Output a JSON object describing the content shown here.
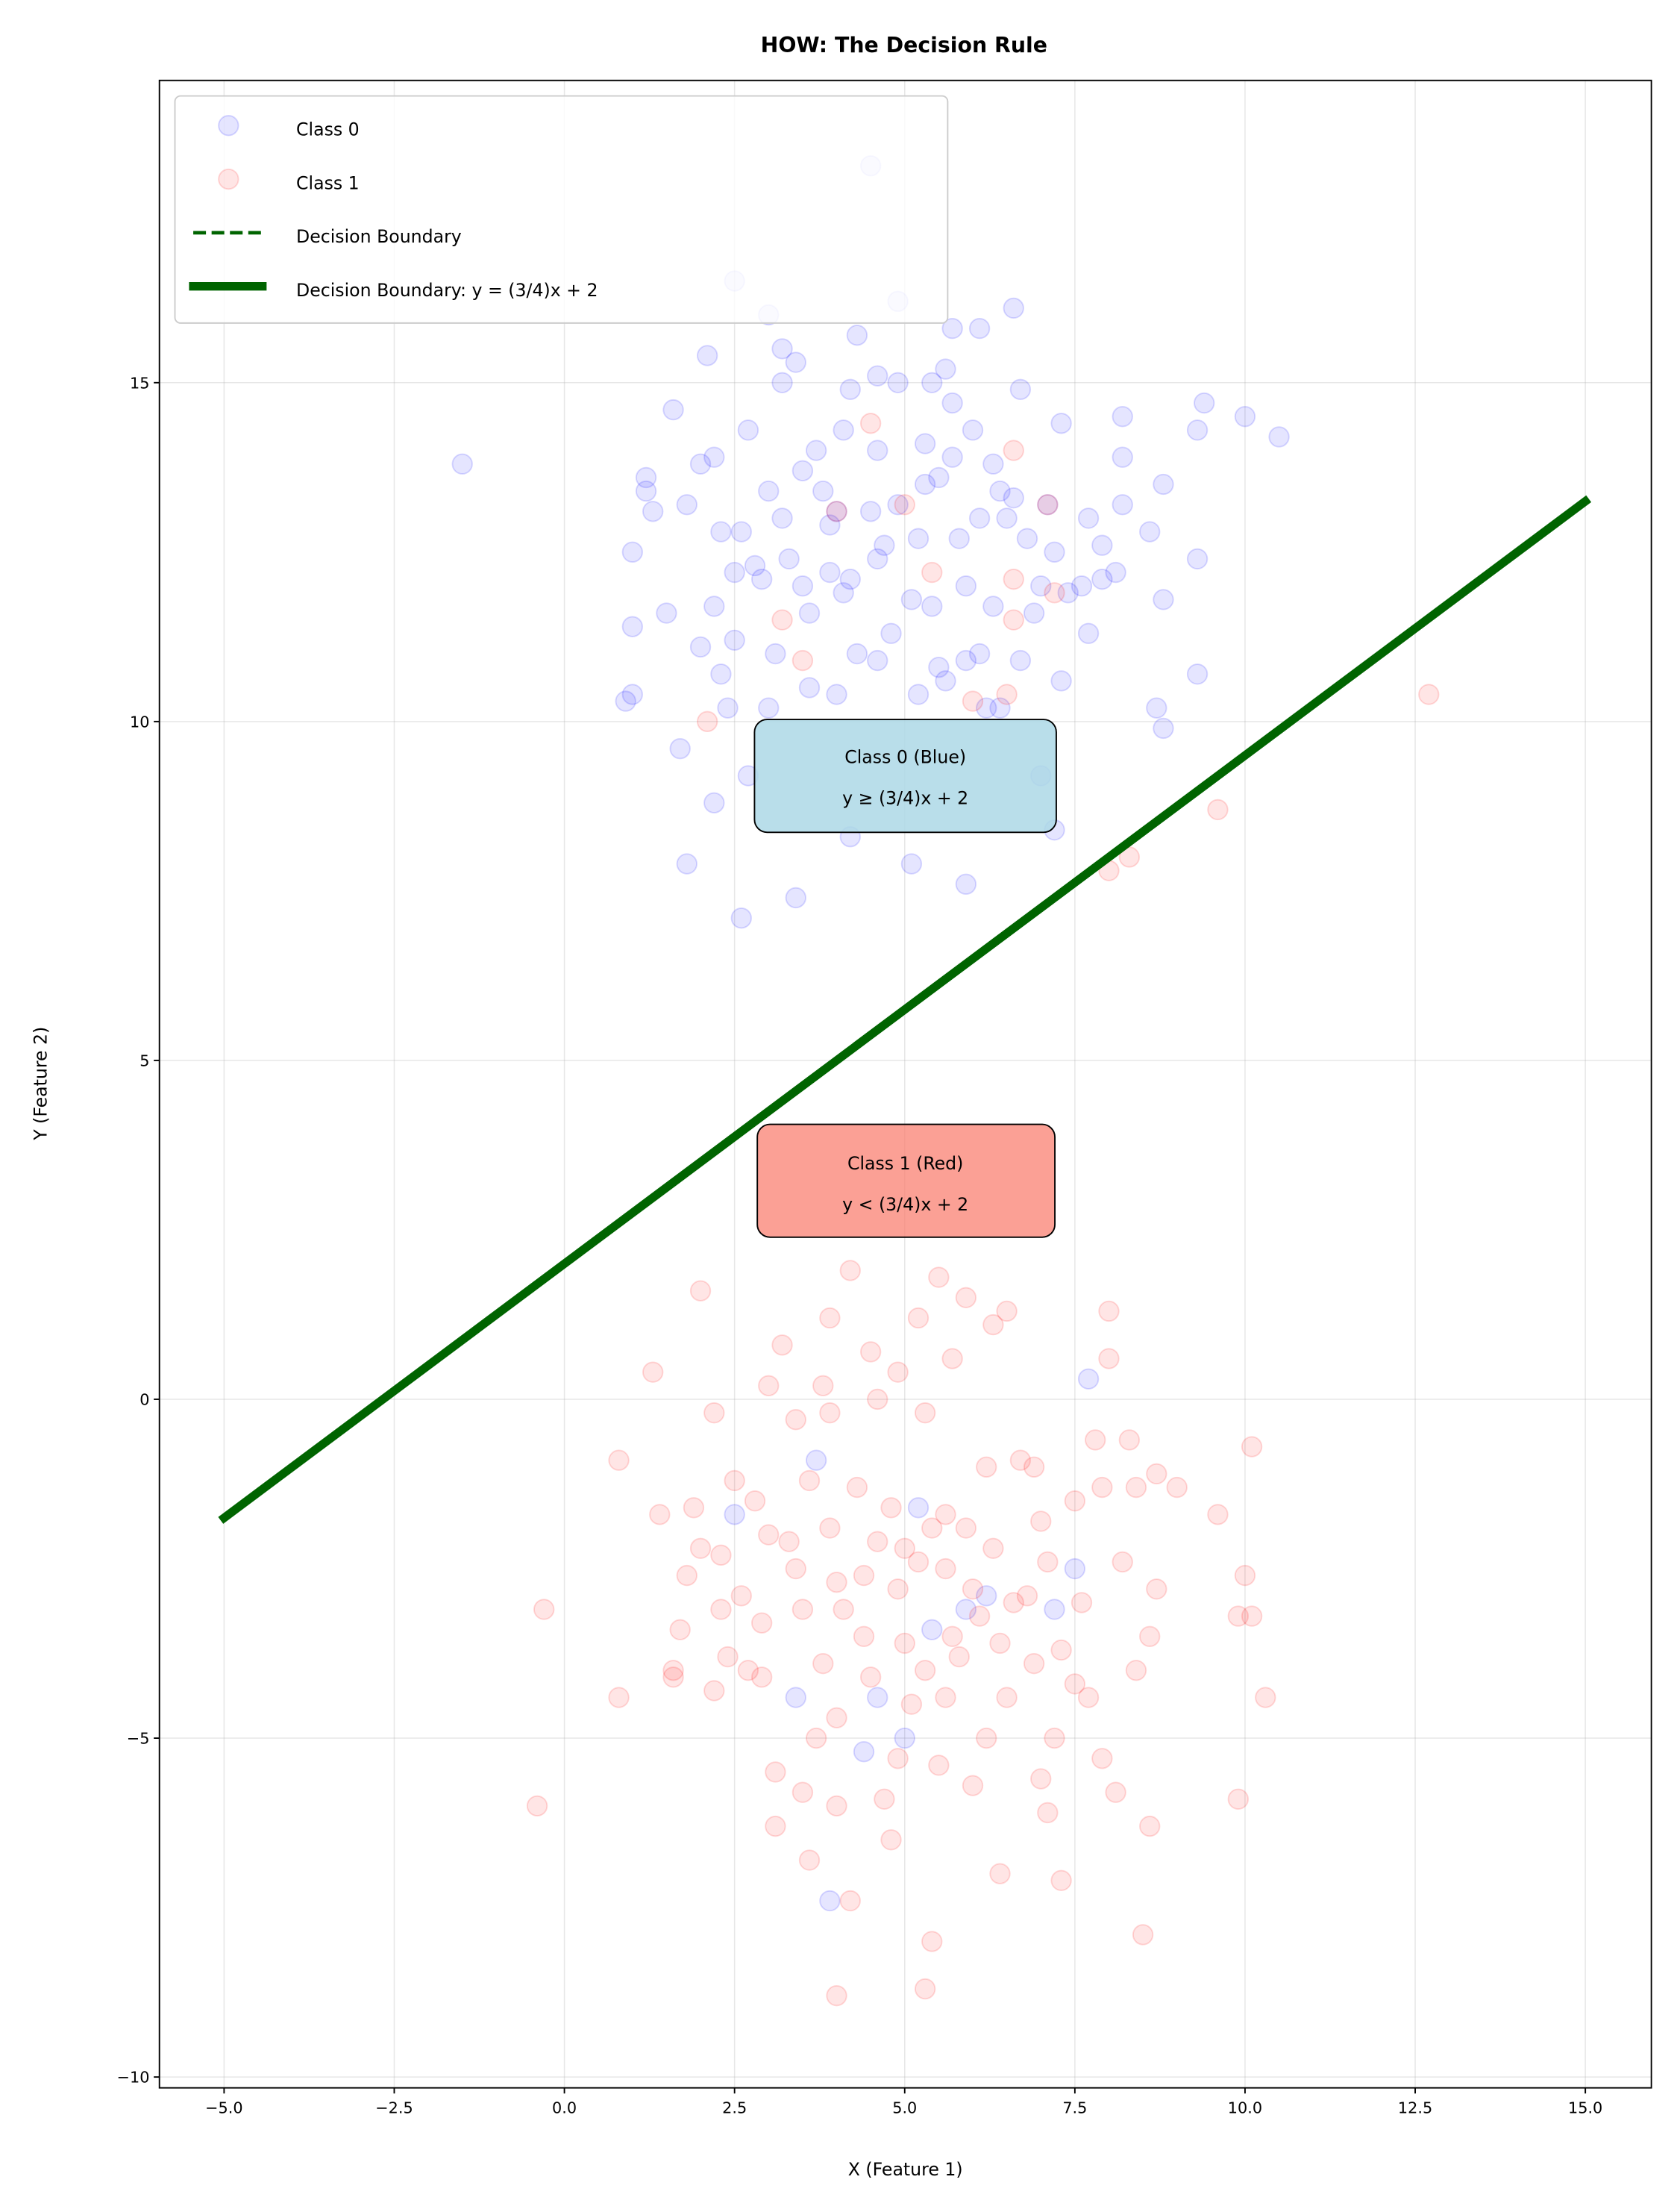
{
  "chart_data": {
    "type": "scatter",
    "title": "HOW: The Decision Rule",
    "xlabel": "X (Feature 1)",
    "ylabel": "Y (Feature 2)",
    "xlim": [
      -5.95,
      15.97
    ],
    "ylim": [
      -10.16,
      19.46
    ],
    "xticks": [
      -5.0,
      -2.5,
      0.0,
      2.5,
      5.0,
      7.5,
      10.0,
      12.5,
      15.0
    ],
    "xtick_labels": [
      "−5.0",
      "−2.5",
      "0.0",
      "2.5",
      "5.0",
      "7.5",
      "10.0",
      "12.5",
      "15.0"
    ],
    "yticks": [
      -10,
      -5,
      0,
      5,
      10,
      15
    ],
    "ytick_labels": [
      "−10",
      "−5",
      "0",
      "5",
      "10",
      "15"
    ],
    "grid": true,
    "legend_position": "top-left",
    "legend": [
      "Class 0",
      "Class 1",
      "Decision Boundary",
      "Decision Boundary: y = (3/4)x + 2"
    ],
    "series": [
      {
        "name": "Class 0",
        "kind": "scatter",
        "color": "#0000ff",
        "alpha": 0.1,
        "points": [
          [
            4.5,
            18.2
          ],
          [
            -1.5,
            13.8
          ],
          [
            1.2,
            13.6
          ],
          [
            1.2,
            13.4
          ],
          [
            1.3,
            13.1
          ],
          [
            1.8,
            13.2
          ],
          [
            2.0,
            13.8
          ],
          [
            2.2,
            13.9
          ],
          [
            1.6,
            14.6
          ],
          [
            2.1,
            15.4
          ],
          [
            2.5,
            16.5
          ],
          [
            3.0,
            16.0
          ],
          [
            3.2,
            15.5
          ],
          [
            3.4,
            15.3
          ],
          [
            3.2,
            15.0
          ],
          [
            4.3,
            15.7
          ],
          [
            4.9,
            16.2
          ],
          [
            6.6,
            16.1
          ],
          [
            6.1,
            15.8
          ],
          [
            5.7,
            15.8
          ],
          [
            4.2,
            14.9
          ],
          [
            4.6,
            15.1
          ],
          [
            4.9,
            15.0
          ],
          [
            5.4,
            15.0
          ],
          [
            5.6,
            15.2
          ],
          [
            5.7,
            14.7
          ],
          [
            6.7,
            14.9
          ],
          [
            7.3,
            14.4
          ],
          [
            8.2,
            14.5
          ],
          [
            9.3,
            14.3
          ],
          [
            9.4,
            14.7
          ],
          [
            10.0,
            14.5
          ],
          [
            10.5,
            14.2
          ],
          [
            2.7,
            14.3
          ],
          [
            4.1,
            14.3
          ],
          [
            5.3,
            14.1
          ],
          [
            5.7,
            13.9
          ],
          [
            6.4,
            13.4
          ],
          [
            6.6,
            13.3
          ],
          [
            8.2,
            13.9
          ],
          [
            8.2,
            13.2
          ],
          [
            8.8,
            13.5
          ],
          [
            8.6,
            12.8
          ],
          [
            9.3,
            12.4
          ],
          [
            7.9,
            12.1
          ],
          [
            8.1,
            12.2
          ],
          [
            8.8,
            11.8
          ],
          [
            9.3,
            10.7
          ],
          [
            8.7,
            10.2
          ],
          [
            8.8,
            9.9
          ],
          [
            7.7,
            11.3
          ],
          [
            7.3,
            10.6
          ],
          [
            1.0,
            12.5
          ],
          [
            1.0,
            11.4
          ],
          [
            1.5,
            11.6
          ],
          [
            2.0,
            11.1
          ],
          [
            2.3,
            12.8
          ],
          [
            2.6,
            12.8
          ],
          [
            2.5,
            12.2
          ],
          [
            2.8,
            12.3
          ],
          [
            2.2,
            11.7
          ],
          [
            2.5,
            11.2
          ],
          [
            2.3,
            10.7
          ],
          [
            2.4,
            10.2
          ],
          [
            1.0,
            10.4
          ],
          [
            0.9,
            10.3
          ],
          [
            1.7,
            9.6
          ],
          [
            2.2,
            8.8
          ],
          [
            2.7,
            9.2
          ],
          [
            1.8,
            7.9
          ],
          [
            2.6,
            7.1
          ],
          [
            3.4,
            7.4
          ],
          [
            4.2,
            8.3
          ],
          [
            5.1,
            7.9
          ],
          [
            5.9,
            7.6
          ],
          [
            7.2,
            8.4
          ],
          [
            7.0,
            9.2
          ],
          [
            3.1,
            11.0
          ],
          [
            3.6,
            11.6
          ],
          [
            3.9,
            12.2
          ],
          [
            4.0,
            13.1
          ],
          [
            3.8,
            13.4
          ],
          [
            4.5,
            13.1
          ],
          [
            4.7,
            12.6
          ],
          [
            5.1,
            11.8
          ],
          [
            5.4,
            11.7
          ],
          [
            5.5,
            10.8
          ],
          [
            5.9,
            10.9
          ],
          [
            6.2,
            10.2
          ],
          [
            6.4,
            10.2
          ],
          [
            6.9,
            11.6
          ],
          [
            7.0,
            12.0
          ],
          [
            7.2,
            12.5
          ],
          [
            6.8,
            12.7
          ],
          [
            6.5,
            13.0
          ],
          [
            6.1,
            13.0
          ],
          [
            5.8,
            12.7
          ],
          [
            5.2,
            12.7
          ],
          [
            4.6,
            12.4
          ],
          [
            4.2,
            12.1
          ],
          [
            3.5,
            12.0
          ],
          [
            3.3,
            12.4
          ],
          [
            3.6,
            10.5
          ],
          [
            4.0,
            10.4
          ],
          [
            4.3,
            11.0
          ],
          [
            4.6,
            10.9
          ],
          [
            4.8,
            11.3
          ],
          [
            5.2,
            10.4
          ],
          [
            5.6,
            10.6
          ],
          [
            6.1,
            11.0
          ],
          [
            6.7,
            10.9
          ],
          [
            3.0,
            10.2
          ],
          [
            3.9,
            12.9
          ],
          [
            4.1,
            11.9
          ],
          [
            5.5,
            13.6
          ],
          [
            5.9,
            12.0
          ],
          [
            6.3,
            11.7
          ],
          [
            7.4,
            11.9
          ],
          [
            7.6,
            12.0
          ],
          [
            7.9,
            12.6
          ],
          [
            7.7,
            13.0
          ],
          [
            3.7,
            14.0
          ],
          [
            3.2,
            13.0
          ],
          [
            2.9,
            12.1
          ],
          [
            3.0,
            13.4
          ],
          [
            3.5,
            13.7
          ],
          [
            4.9,
            13.2
          ],
          [
            5.3,
            13.5
          ],
          [
            6.3,
            13.8
          ],
          [
            7.1,
            13.2
          ],
          [
            6.0,
            14.3
          ],
          [
            4.6,
            14.0
          ],
          [
            7.7,
            0.3
          ],
          [
            2.5,
            -1.7
          ],
          [
            3.7,
            -0.9
          ],
          [
            5.2,
            -1.6
          ],
          [
            6.2,
            -2.9
          ],
          [
            7.5,
            -2.5
          ],
          [
            7.2,
            -3.1
          ],
          [
            5.9,
            -3.1
          ],
          [
            5.4,
            -3.4
          ],
          [
            3.4,
            -4.4
          ],
          [
            4.6,
            -4.4
          ],
          [
            4.4,
            -5.2
          ],
          [
            5.0,
            -5.0
          ],
          [
            3.9,
            -7.4
          ]
        ]
      },
      {
        "name": "Class 1",
        "kind": "scatter",
        "color": "#ff0000",
        "alpha": 0.1,
        "points": [
          [
            4.5,
            14.4
          ],
          [
            12.7,
            10.4
          ],
          [
            9.6,
            8.7
          ],
          [
            8.0,
            7.8
          ],
          [
            8.3,
            8.0
          ],
          [
            6.6,
            14.0
          ],
          [
            7.1,
            13.2
          ],
          [
            7.2,
            11.9
          ],
          [
            3.2,
            11.5
          ],
          [
            3.5,
            10.9
          ],
          [
            2.1,
            10.0
          ],
          [
            4.0,
            13.1
          ],
          [
            5.4,
            12.2
          ],
          [
            6.0,
            10.3
          ],
          [
            6.5,
            10.4
          ],
          [
            6.6,
            11.5
          ],
          [
            5.0,
            13.2
          ],
          [
            6.6,
            12.1
          ],
          [
            -0.3,
            -3.1
          ],
          [
            -0.4,
            -6.0
          ],
          [
            0.8,
            -0.9
          ],
          [
            0.8,
            -4.4
          ],
          [
            1.3,
            0.4
          ],
          [
            1.4,
            -1.7
          ],
          [
            1.6,
            -4.1
          ],
          [
            1.6,
            -4.0
          ],
          [
            1.7,
            -3.4
          ],
          [
            1.9,
            -1.6
          ],
          [
            2.0,
            1.6
          ],
          [
            2.0,
            -2.2
          ],
          [
            2.2,
            -0.2
          ],
          [
            2.3,
            -2.3
          ],
          [
            2.3,
            -3.1
          ],
          [
            2.4,
            -3.8
          ],
          [
            2.5,
            -1.2
          ],
          [
            2.6,
            -2.9
          ],
          [
            2.7,
            -4.0
          ],
          [
            2.8,
            -1.5
          ],
          [
            2.9,
            -3.3
          ],
          [
            3.0,
            0.2
          ],
          [
            3.0,
            -2.0
          ],
          [
            3.1,
            -5.5
          ],
          [
            3.1,
            -6.3
          ],
          [
            3.2,
            0.8
          ],
          [
            3.4,
            -0.3
          ],
          [
            3.4,
            -2.5
          ],
          [
            3.5,
            -3.1
          ],
          [
            3.5,
            -5.8
          ],
          [
            3.6,
            -6.8
          ],
          [
            3.6,
            -1.2
          ],
          [
            3.8,
            0.2
          ],
          [
            3.9,
            1.2
          ],
          [
            3.9,
            -0.2
          ],
          [
            3.9,
            -1.9
          ],
          [
            4.0,
            -2.7
          ],
          [
            4.0,
            -4.7
          ],
          [
            4.0,
            -6.0
          ],
          [
            4.0,
            -8.8
          ],
          [
            4.1,
            -3.1
          ],
          [
            4.2,
            -7.4
          ],
          [
            4.2,
            1.9
          ],
          [
            4.3,
            -1.3
          ],
          [
            4.4,
            -3.5
          ],
          [
            4.5,
            0.7
          ],
          [
            4.6,
            0.0
          ],
          [
            4.6,
            -2.1
          ],
          [
            4.7,
            -5.9
          ],
          [
            4.8,
            -6.5
          ],
          [
            4.9,
            0.4
          ],
          [
            4.9,
            -2.8
          ],
          [
            5.0,
            -3.6
          ],
          [
            5.1,
            -4.5
          ],
          [
            5.2,
            1.2
          ],
          [
            5.3,
            -0.2
          ],
          [
            5.3,
            -8.7
          ],
          [
            5.4,
            -1.9
          ],
          [
            5.4,
            -8.0
          ],
          [
            5.5,
            1.8
          ],
          [
            5.5,
            -5.4
          ],
          [
            5.6,
            -2.5
          ],
          [
            5.7,
            0.6
          ],
          [
            5.7,
            -3.5
          ],
          [
            5.9,
            -1.9
          ],
          [
            5.9,
            1.5
          ],
          [
            6.0,
            -5.7
          ],
          [
            6.1,
            -3.2
          ],
          [
            6.2,
            -1.0
          ],
          [
            6.2,
            -5.0
          ],
          [
            6.3,
            1.1
          ],
          [
            6.3,
            -2.2
          ],
          [
            6.4,
            -7.0
          ],
          [
            6.5,
            1.3
          ],
          [
            6.5,
            -4.4
          ],
          [
            6.7,
            -0.9
          ],
          [
            6.8,
            -2.9
          ],
          [
            6.9,
            -3.9
          ],
          [
            7.0,
            -5.6
          ],
          [
            7.0,
            -1.8
          ],
          [
            7.1,
            -2.4
          ],
          [
            7.1,
            -6.1
          ],
          [
            7.2,
            -5.0
          ],
          [
            7.3,
            -3.7
          ],
          [
            7.3,
            -7.1
          ],
          [
            7.5,
            -4.2
          ],
          [
            7.5,
            -1.5
          ],
          [
            7.7,
            -4.4
          ],
          [
            7.8,
            -0.6
          ],
          [
            7.9,
            -5.3
          ],
          [
            7.9,
            -1.3
          ],
          [
            8.0,
            1.3
          ],
          [
            8.0,
            0.6
          ],
          [
            8.1,
            -5.8
          ],
          [
            8.2,
            -2.4
          ],
          [
            8.3,
            -0.6
          ],
          [
            8.4,
            -1.3
          ],
          [
            8.4,
            -4.0
          ],
          [
            8.5,
            -7.9
          ],
          [
            8.6,
            -6.3
          ],
          [
            8.6,
            -3.5
          ],
          [
            8.7,
            -1.1
          ],
          [
            8.7,
            -2.8
          ],
          [
            9.0,
            -1.3
          ],
          [
            9.6,
            -1.7
          ],
          [
            9.9,
            -5.9
          ],
          [
            9.9,
            -3.2
          ],
          [
            10.0,
            -2.6
          ],
          [
            10.1,
            -0.7
          ],
          [
            10.1,
            -3.2
          ],
          [
            10.3,
            -4.4
          ],
          [
            5.0,
            -2.2
          ],
          [
            5.2,
            -2.4
          ],
          [
            5.6,
            -1.7
          ],
          [
            4.8,
            -1.6
          ],
          [
            4.4,
            -2.6
          ],
          [
            6.0,
            -2.8
          ],
          [
            6.6,
            -3.0
          ],
          [
            5.8,
            -3.8
          ],
          [
            3.3,
            -2.1
          ],
          [
            2.9,
            -4.1
          ],
          [
            4.5,
            -4.1
          ],
          [
            5.6,
            -4.4
          ],
          [
            6.4,
            -3.6
          ],
          [
            7.6,
            -3.0
          ],
          [
            6.9,
            -1.0
          ],
          [
            3.8,
            -3.9
          ],
          [
            4.9,
            -5.3
          ],
          [
            5.3,
            -4.0
          ],
          [
            2.2,
            -4.3
          ],
          [
            1.8,
            -2.6
          ],
          [
            3.7,
            -5.0
          ]
        ]
      },
      {
        "name": "Decision Boundary",
        "kind": "line",
        "style": "dashed",
        "color": "#006400",
        "points": []
      },
      {
        "name": "Decision Boundary: y = (3/4)x + 2",
        "kind": "line",
        "style": "solid",
        "color": "#006400",
        "slope": 0.75,
        "intercept": 2,
        "x_range": [
          -5,
          15
        ]
      }
    ],
    "annotations": [
      {
        "lines": [
          "Class 0 (Blue)",
          "y ≥ (3/4)x + 2"
        ],
        "x": 5.0,
        "y": 9.0,
        "facecolor": "#add8e6"
      },
      {
        "lines": [
          "Class 1 (Red)",
          "y < (3/4)x + 2"
        ],
        "x": 5.0,
        "y": 3.0,
        "facecolor": "#fa8072"
      }
    ]
  }
}
